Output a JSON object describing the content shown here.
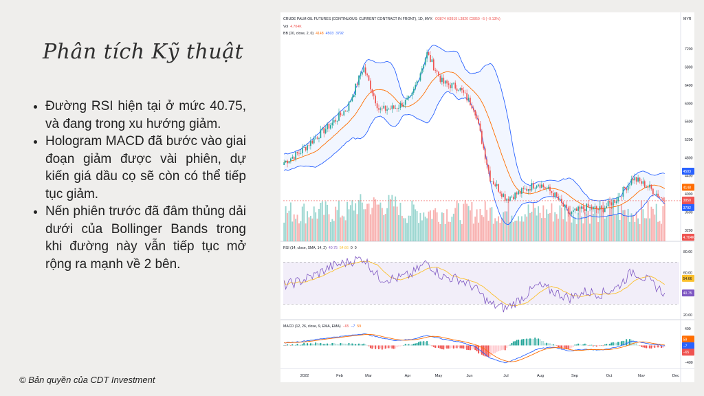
{
  "slide": {
    "title": "Phân tích Kỹ thuật",
    "bullets": [
      "Đường RSI hiện tại ở mức 40.75, và đang trong xu hướng giảm.",
      "Hologram MACD đã bước vào giai đoạn giảm được vài phiên, dự kiến giá dầu cọ sẽ còn có thể tiếp tục giảm.",
      "Nến phiên trước đã đâm thủng dải dưới của Bollinger Bands trong khi đường này vẫn tiếp tục mở rộng ra mạnh về 2 bên."
    ],
    "copyright": "© Bản quyền của CDT Investment"
  },
  "chart": {
    "header": "CRUDE PALM OIL FUTURES (CONTINUOUS: CURRENT CONTRACT IN FRONT), 1D, MYX",
    "ohlc_text": "O3874 H3919 L3820 C3850 −5 (−0.13%)",
    "currency": "MYR",
    "vol_label": "Vol",
    "vol_value": "4.704K",
    "bb_label": "BB (20, close, 2, 0)",
    "bb_values": [
      "4148",
      "4503",
      "3792"
    ],
    "rsi_label": "RSI (14, close, SMA, 14, 2)",
    "rsi_values": [
      "40.75",
      "54.66",
      "0",
      "0"
    ],
    "macd_label": "MACD (12, 26, close, 9, EMA, EMA)",
    "macd_values": [
      "−65",
      "−7",
      "59"
    ],
    "price_ticks": [
      "7200",
      "6800",
      "6400",
      "6000",
      "5600",
      "5200",
      "4800",
      "4400",
      "4000",
      "3600",
      "3200"
    ],
    "rsi_ticks": [
      "80.00",
      "60.00",
      "20.00"
    ],
    "macd_ticks": [
      "400",
      "0",
      "−400"
    ],
    "x_labels": [
      "2022",
      "Feb",
      "Mar",
      "Apr",
      "May",
      "Jun",
      "Jul",
      "Aug",
      "Sep",
      "Oct",
      "Nov",
      "Dec"
    ],
    "badges": {
      "bb_upper": "4503",
      "bb_middle": "4148",
      "close": "3850",
      "countdown": "08:17:57",
      "bb_lower": "3792",
      "volume": "4.704K",
      "rsi_ma": "54.66",
      "rsi": "40.75",
      "macd_signal": "59",
      "macd_line": "−7",
      "macd_hist": "−65"
    },
    "colors": {
      "up": "#26a69a",
      "down": "#ef5350",
      "bb_band": "#2962ff",
      "bb_basis": "#ff6d00",
      "rsi": "#7e57c2",
      "rsi_ma": "#fbc02d",
      "macd_line": "#2962ff",
      "macd_signal": "#ff6d00"
    }
  },
  "chart_data": {
    "type": "candlestick",
    "title": "CRUDE PALM OIL FUTURES (CONTINUOUS: CURRENT CONTRACT IN FRONT), 1D, MYX",
    "x": [
      "Jan-03",
      "Jan-17",
      "Jan-31",
      "Feb-14",
      "Feb-28",
      "Mar-14",
      "Mar-28",
      "Apr-11",
      "Apr-25",
      "May-09",
      "May-23",
      "Jun-06",
      "Jun-20",
      "Jul-04",
      "Jul-18",
      "Aug-01",
      "Aug-15",
      "Aug-29",
      "Sep-12",
      "Sep-26",
      "Oct-10",
      "Oct-24",
      "Nov-07",
      "Nov-21",
      "Nov-28"
    ],
    "close": [
      4700,
      4920,
      5250,
      5550,
      5900,
      6800,
      5850,
      5900,
      6100,
      7100,
      6450,
      6350,
      5900,
      4350,
      3900,
      4050,
      4250,
      4000,
      3550,
      3700,
      3650,
      3900,
      4350,
      4150,
      3850
    ],
    "ylim": [
      3000,
      7400
    ],
    "bb_upper_last": 4503,
    "bb_middle_last": 4148,
    "bb_lower_last": 3792,
    "rsi": [
      48,
      52,
      58,
      66,
      70,
      74,
      55,
      54,
      58,
      70,
      56,
      54,
      46,
      30,
      26,
      36,
      48,
      42,
      36,
      42,
      40,
      46,
      62,
      52,
      40.75
    ],
    "rsi_ylim": [
      20,
      80
    ],
    "macd": [
      60,
      90,
      140,
      190,
      230,
      280,
      190,
      120,
      140,
      240,
      150,
      90,
      -20,
      -300,
      -420,
      -260,
      -80,
      -40,
      -130,
      -90,
      -110,
      -40,
      110,
      40,
      -7
    ],
    "macd_ylim": [
      -500,
      400
    ]
  }
}
